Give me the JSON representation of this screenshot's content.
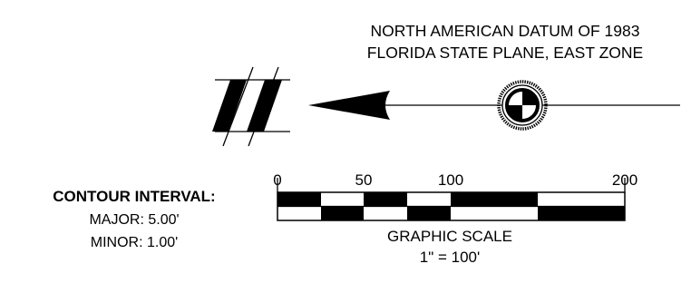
{
  "datum": {
    "line1": "NORTH AMERICAN DATUM OF 1983",
    "line2": "FLORIDA STATE PLANE, EAST ZONE"
  },
  "contour": {
    "heading": "CONTOUR INTERVAL:",
    "major": "MAJOR: 5.00'",
    "minor": "MINOR: 1.00'"
  },
  "scale": {
    "title": "GRAPHIC SCALE",
    "ratio": "1\" = 100'",
    "tick_labels": [
      "0",
      "50",
      "100",
      "200"
    ]
  },
  "colors": {
    "ink": "#000000",
    "paper": "#ffffff"
  }
}
